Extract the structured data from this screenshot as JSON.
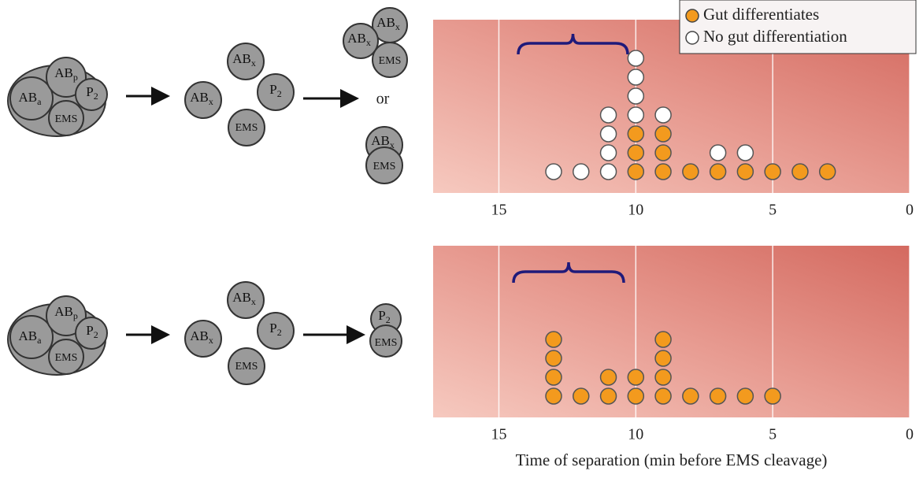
{
  "diagram": {
    "top": {
      "embryo": [
        {
          "base": "AB",
          "sub": "a"
        },
        {
          "base": "AB",
          "sub": "p"
        },
        {
          "base": "P",
          "sub": "2"
        },
        {
          "base": "EMS"
        }
      ],
      "separated": [
        {
          "base": "AB",
          "sub": "x"
        },
        {
          "base": "AB",
          "sub": "x"
        },
        {
          "base": "P",
          "sub": "2"
        },
        {
          "base": "EMS"
        }
      ],
      "result_a": [
        {
          "base": "AB",
          "sub": "x"
        },
        {
          "base": "AB",
          "sub": "x"
        },
        {
          "base": "EMS"
        }
      ],
      "or": "or",
      "result_b": [
        {
          "base": "AB",
          "sub": "x"
        },
        {
          "base": "EMS"
        }
      ]
    },
    "bottom": {
      "embryo": [
        {
          "base": "AB",
          "sub": "a"
        },
        {
          "base": "AB",
          "sub": "p"
        },
        {
          "base": "P",
          "sub": "2"
        },
        {
          "base": "EMS"
        }
      ],
      "separated": [
        {
          "base": "AB",
          "sub": "x"
        },
        {
          "base": "AB",
          "sub": "x"
        },
        {
          "base": "P",
          "sub": "2"
        },
        {
          "base": "EMS"
        }
      ],
      "result": [
        {
          "base": "P",
          "sub": "2"
        },
        {
          "base": "EMS"
        }
      ]
    }
  },
  "chart_data": [
    {
      "type": "dot",
      "x": [
        13,
        12,
        11,
        10,
        9,
        8,
        7,
        6,
        5,
        4,
        3
      ],
      "series": [
        {
          "name": "Gut differentiates",
          "color": "#f39a1e",
          "values": [
            0,
            0,
            0,
            3,
            3,
            1,
            1,
            1,
            1,
            1,
            1
          ]
        },
        {
          "name": "No gut differentiation",
          "color": "#ffffff",
          "values": [
            1,
            1,
            4,
            4,
            1,
            0,
            1,
            1,
            0,
            0,
            0
          ]
        }
      ],
      "xlim": [
        17.4,
        0
      ],
      "xticks": [
        15,
        10,
        5,
        0
      ],
      "grid": true,
      "legend": "top-right"
    },
    {
      "type": "dot",
      "x": [
        13,
        12,
        11,
        10,
        9,
        8,
        7,
        6,
        5
      ],
      "series": [
        {
          "color": "#f39a1e",
          "values": [
            4,
            1,
            2,
            2,
            4,
            1,
            1,
            1,
            1
          ]
        }
      ],
      "xlim": [
        17.4,
        0
      ],
      "xticks": [
        15,
        10,
        5,
        0
      ],
      "grid": true,
      "xlabel": "Time of separation (min before EMS cleavage)"
    }
  ]
}
